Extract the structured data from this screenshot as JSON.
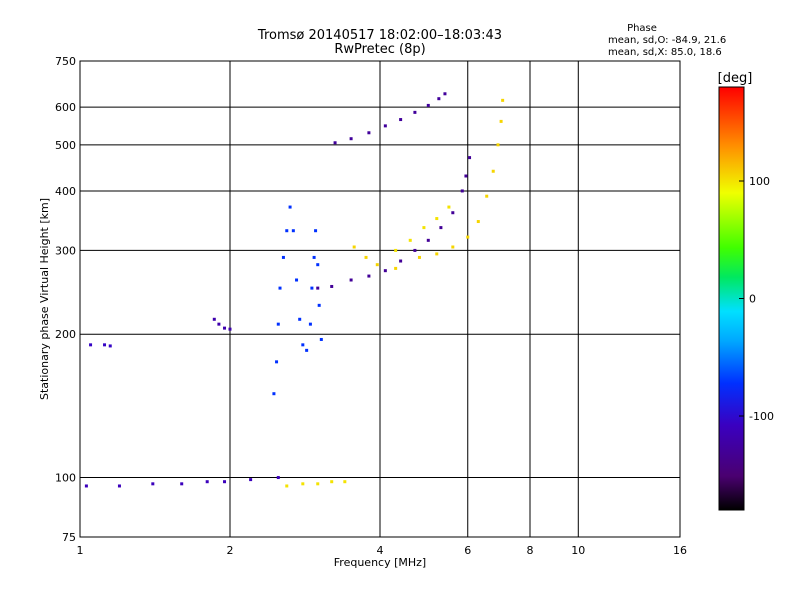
{
  "header": {
    "title": "Tromsø 20140517 18:02:00–18:03:43",
    "subtitle": "RwPretec (8p)",
    "phase_heading": "Phase",
    "phase_o": "mean, sd,O:  -84.9, 21.6",
    "phase_x": "mean, sd,X:  85.0, 18.6"
  },
  "colorbar": {
    "label": "[deg]",
    "ticks": [
      "100",
      "0",
      "-100"
    ],
    "tick_values": [
      100,
      0,
      -100
    ],
    "range": [
      -180,
      180
    ]
  },
  "chart_data": {
    "type": "scatter",
    "xlabel": "Frequency [MHz]",
    "ylabel": "Stationary phase Virtual Height [km]",
    "x_scale": "log",
    "y_scale": "log",
    "xlim": [
      1,
      16
    ],
    "ylim": [
      75,
      750
    ],
    "x_ticks": [
      1,
      2,
      4,
      6,
      8,
      10,
      16
    ],
    "x_tick_labels": [
      "1",
      "2",
      "4",
      "6",
      "8",
      "10",
      "16"
    ],
    "y_ticks": [
      75,
      100,
      200,
      300,
      400,
      500,
      600,
      750
    ],
    "y_tick_labels": [
      "75",
      "100",
      "200",
      "300",
      "400",
      "500",
      "600",
      "750"
    ],
    "grid": true,
    "color_by": "phase",
    "traces": [
      {
        "phase": -110,
        "points": [
          [
            1.03,
            96
          ],
          [
            1.2,
            96
          ],
          [
            1.4,
            97
          ],
          [
            1.6,
            97
          ],
          [
            1.8,
            98
          ],
          [
            1.95,
            98
          ],
          [
            2.2,
            99
          ],
          [
            2.5,
            100
          ]
        ]
      },
      {
        "phase": -105,
        "points": [
          [
            1.05,
            190
          ],
          [
            1.12,
            190
          ],
          [
            1.15,
            189
          ]
        ]
      },
      {
        "phase": -118,
        "points": [
          [
            1.86,
            215
          ],
          [
            1.9,
            210
          ],
          [
            1.95,
            206
          ],
          [
            2.0,
            205
          ]
        ]
      },
      {
        "phase": -72,
        "points": [
          [
            2.45,
            150
          ],
          [
            2.48,
            175
          ],
          [
            2.5,
            210
          ],
          [
            2.52,
            250
          ],
          [
            2.56,
            290
          ],
          [
            2.6,
            330
          ],
          [
            2.64,
            370
          ],
          [
            2.68,
            330
          ],
          [
            2.72,
            260
          ],
          [
            2.76,
            215
          ],
          [
            2.8,
            190
          ],
          [
            2.85,
            185
          ],
          [
            2.9,
            210
          ],
          [
            2.92,
            250
          ],
          [
            2.95,
            290
          ],
          [
            2.97,
            330
          ],
          [
            3.0,
            280
          ],
          [
            3.02,
            230
          ],
          [
            3.05,
            195
          ]
        ]
      },
      {
        "phase": -130,
        "points": [
          [
            3.0,
            250
          ],
          [
            3.2,
            252
          ],
          [
            3.5,
            260
          ],
          [
            3.8,
            265
          ],
          [
            4.1,
            272
          ],
          [
            4.4,
            285
          ],
          [
            4.7,
            300
          ],
          [
            5.0,
            315
          ],
          [
            5.3,
            335
          ],
          [
            5.6,
            360
          ],
          [
            5.85,
            400
          ],
          [
            5.95,
            430
          ],
          [
            6.05,
            470
          ]
        ]
      },
      {
        "phase": -128,
        "points": [
          [
            3.25,
            505
          ],
          [
            3.5,
            515
          ],
          [
            3.8,
            530
          ],
          [
            4.1,
            548
          ],
          [
            4.4,
            565
          ],
          [
            4.7,
            585
          ],
          [
            5.0,
            605
          ],
          [
            5.25,
            625
          ],
          [
            5.4,
            640
          ]
        ]
      },
      {
        "phase": 105,
        "points": [
          [
            3.55,
            305
          ],
          [
            3.75,
            290
          ],
          [
            3.95,
            280
          ],
          [
            4.3,
            275
          ],
          [
            4.8,
            290
          ],
          [
            5.2,
            295
          ],
          [
            5.6,
            305
          ],
          [
            6.0,
            320
          ],
          [
            6.3,
            345
          ],
          [
            6.55,
            390
          ],
          [
            6.75,
            440
          ],
          [
            6.9,
            500
          ],
          [
            7.0,
            560
          ],
          [
            7.05,
            620
          ]
        ]
      },
      {
        "phase": 100,
        "points": [
          [
            2.6,
            96
          ],
          [
            2.8,
            97
          ],
          [
            3.0,
            97
          ],
          [
            3.2,
            98
          ],
          [
            3.4,
            98
          ]
        ]
      },
      {
        "phase": 100,
        "points": [
          [
            4.3,
            300
          ],
          [
            4.6,
            315
          ],
          [
            4.9,
            335
          ],
          [
            5.2,
            350
          ],
          [
            5.5,
            370
          ]
        ]
      }
    ]
  }
}
